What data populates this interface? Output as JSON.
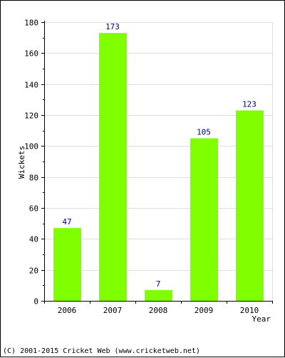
{
  "chart_data": {
    "type": "bar",
    "categories": [
      "2006",
      "2007",
      "2008",
      "2009",
      "2010"
    ],
    "values": [
      47,
      173,
      7,
      105,
      123
    ],
    "data_labels": [
      "47",
      "173",
      "7",
      "105",
      "123"
    ],
    "title": "",
    "xlabel": "Year",
    "ylabel": "Wickets",
    "ylim": [
      0,
      180
    ],
    "yticks": [
      0,
      20,
      40,
      60,
      80,
      100,
      120,
      140,
      160,
      180
    ],
    "grid": true,
    "bar_color": "#80ff00",
    "label_color": "#000080",
    "grid_color": "#dddddd"
  },
  "footer": {
    "copyright": "(C) 2001-2015 Cricket Web (www.cricketweb.net)"
  }
}
